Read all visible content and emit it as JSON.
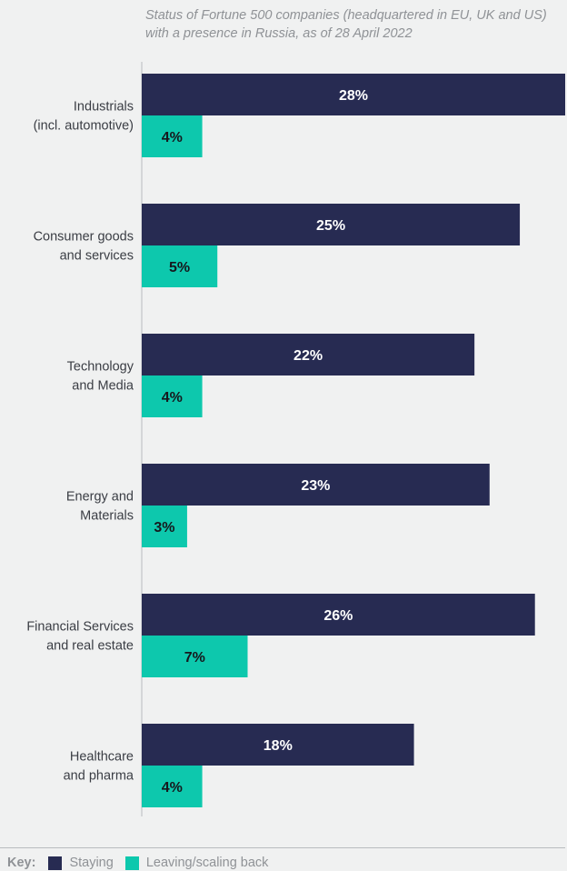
{
  "subtitle": "Status of Fortune 500 companies (headquartered in EU, UK and US) with a presence in Russia, as of 28 April 2022",
  "key": {
    "title": "Key:",
    "items": [
      {
        "label": "Staying",
        "color": "#272b52"
      },
      {
        "label": "Leaving/scaling back",
        "color": "#0dc8ad"
      }
    ]
  },
  "chart_data": {
    "type": "bar",
    "orientation": "horizontal",
    "categories": [
      [
        "Industrials",
        "(incl. automotive)"
      ],
      [
        "Consumer goods",
        "and services"
      ],
      [
        "Technology",
        "and Media"
      ],
      [
        "Energy and",
        "Materials"
      ],
      [
        "Financial Services",
        "and real estate"
      ],
      [
        "Healthcare",
        "and pharma"
      ]
    ],
    "series": [
      {
        "name": "Staying",
        "color": "#272b52",
        "label_color": "#ffffff",
        "values": [
          28,
          25,
          22,
          23,
          26,
          18
        ],
        "labels": [
          "28%",
          "25%",
          "22%",
          "23%",
          "26%",
          "18%"
        ]
      },
      {
        "name": "Leaving/scaling back",
        "color": "#0dc8ad",
        "label_color": "#16181d",
        "values": [
          4,
          5,
          4,
          3,
          7,
          4
        ],
        "labels": [
          "4%",
          "5%",
          "4%",
          "3%",
          "7%",
          "4%"
        ]
      }
    ],
    "xlim": [
      0,
      28
    ],
    "grid": false,
    "legend": "bottom-left"
  }
}
